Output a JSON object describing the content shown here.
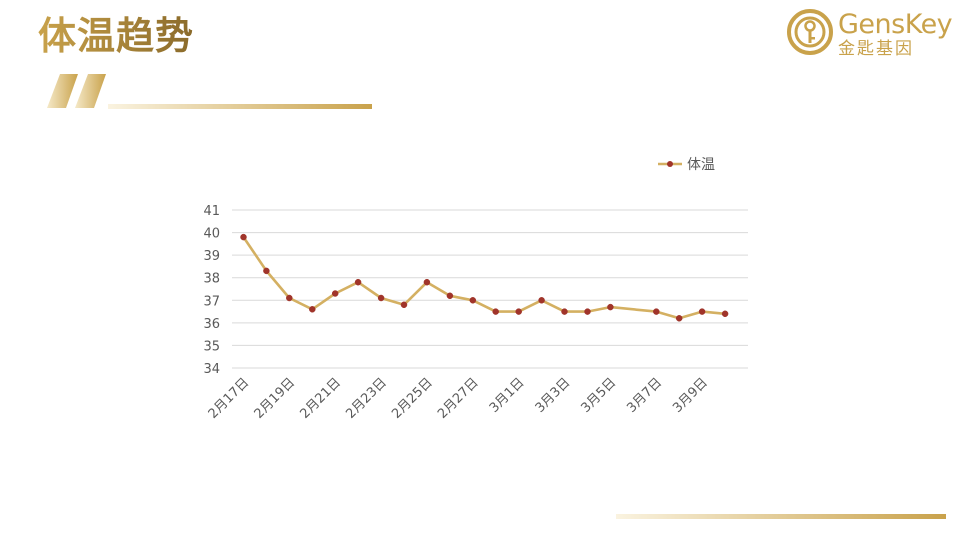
{
  "slide": {
    "title": "体温趋势"
  },
  "logo": {
    "en": "GensKey",
    "cn": "金匙基因"
  },
  "colors": {
    "gold": "#c9a24b",
    "gold_light": "#f3ead3",
    "line": "#d4b062",
    "marker": "#a0342a",
    "grid": "#d9d9d9",
    "text": "#595959"
  },
  "chart_data": {
    "type": "line",
    "title": "",
    "xlabel": "",
    "ylabel": "",
    "legend": "top-right",
    "grid": true,
    "ylim": [
      34,
      41
    ],
    "yticks": [
      34,
      35,
      36,
      37,
      38,
      39,
      40,
      41
    ],
    "x_range": [
      "2月16.5日",
      "3月11日"
    ],
    "xticks": [
      "2月17日",
      "2月19日",
      "2月21日",
      "2月23日",
      "2月25日",
      "2月27日",
      "3月1日",
      "3月3日",
      "3月5日",
      "3月7日",
      "3月9日"
    ],
    "series": [
      {
        "name": "体温",
        "x": [
          "2月17日",
          "2月18日",
          "2月19日",
          "2月20日",
          "2月21日",
          "2月22日",
          "2月23日",
          "2月24日",
          "2月25日",
          "2月26日",
          "2月27日",
          "2月28日",
          "3月1日",
          "3月2日",
          "3月3日",
          "3月4日",
          "3月5日",
          "3月7日",
          "3月8日",
          "3月9日",
          "3月10日"
        ],
        "values": [
          39.8,
          38.3,
          37.1,
          36.6,
          37.3,
          37.8,
          37.1,
          36.8,
          37.8,
          37.2,
          37.0,
          36.5,
          36.5,
          37.0,
          36.5,
          36.5,
          36.7,
          36.5,
          36.2,
          36.5,
          36.4
        ]
      }
    ]
  }
}
